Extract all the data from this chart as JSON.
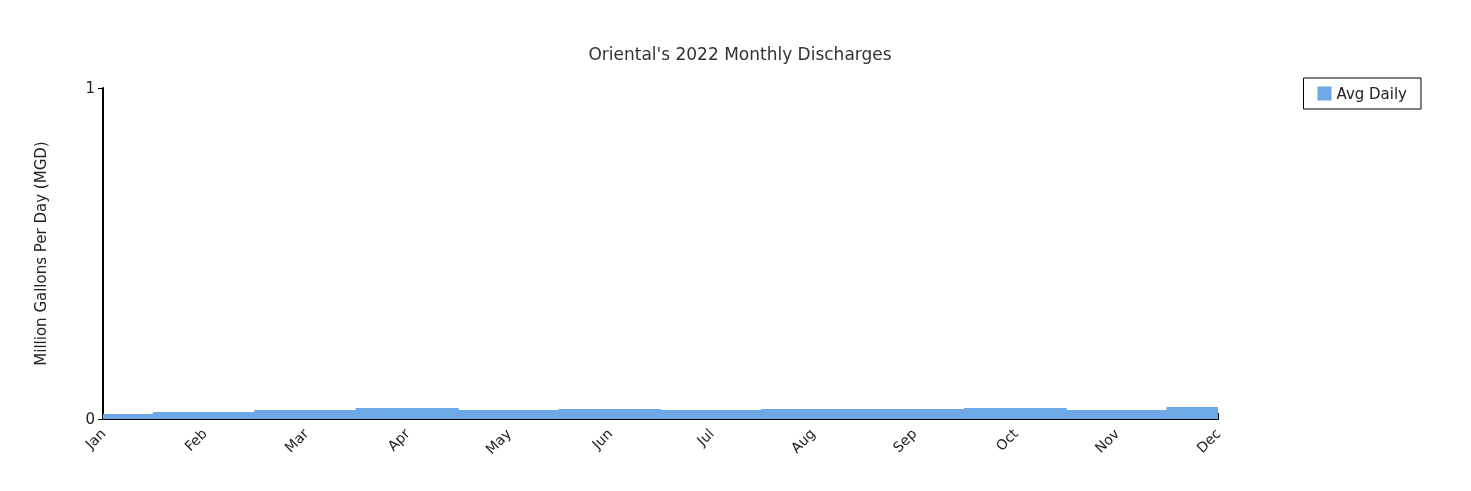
{
  "chart_data": {
    "type": "area",
    "title": "Oriental's 2022 Monthly Discharges",
    "ylabel": "Million Gallons Per Day (MGD)",
    "categories": [
      "Jan",
      "Feb",
      "Mar",
      "Apr",
      "May",
      "Jun",
      "Jul",
      "Aug",
      "Sep",
      "Oct",
      "Nov",
      "Dec"
    ],
    "series": [
      {
        "name": "Avg Daily",
        "color": "#6fa8e6",
        "values": [
          0.012,
          0.018,
          0.024,
          0.03,
          0.024,
          0.027,
          0.024,
          0.027,
          0.027,
          0.03,
          0.024,
          0.033
        ]
      }
    ],
    "ylim": [
      0,
      1
    ],
    "yticks": [
      0,
      1
    ],
    "grid": false,
    "legend": "top right"
  }
}
